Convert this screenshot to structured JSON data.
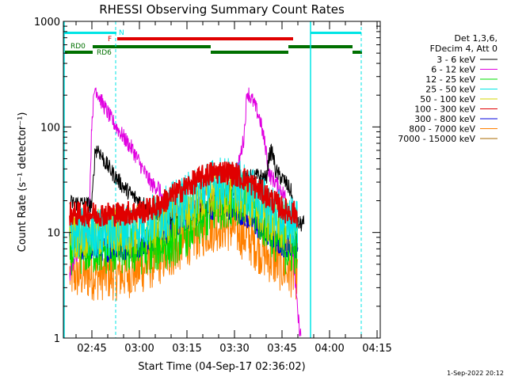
{
  "chart_data": {
    "type": "line",
    "title": "RHESSI Observing Summary Count Rates",
    "xlabel": "Start Time (04-Sep-17 02:36:02)",
    "ylabel": "Count Rate (s⁻¹ detector⁻¹)",
    "ylim": [
      1,
      1000
    ],
    "yscale": "log",
    "xlim_minutes": [
      156,
      256
    ],
    "x_ticks": [
      "02:45",
      "03:00",
      "03:15",
      "03:30",
      "03:45",
      "04:00",
      "04:15"
    ],
    "y_ticks": [
      "1",
      "10",
      "100",
      "1000"
    ],
    "legend_header": [
      "Det 1,3,6,",
      "FDecim 4, Att 0"
    ],
    "legend_position": "right",
    "footer": "1-Sep-2022 20:12",
    "flags": [
      {
        "label": "N",
        "color": "#00e5e5"
      },
      {
        "label": "F",
        "color": "#e00000"
      },
      {
        "label": "RD0",
        "color": "#007000"
      },
      {
        "label": "RD6",
        "color": "#007000"
      }
    ],
    "series": [
      {
        "name": "3 - 6 keV",
        "color": "#000000",
        "points": [
          [
            158,
            19
          ],
          [
            161,
            19
          ],
          [
            165,
            18
          ],
          [
            166,
            60
          ],
          [
            167,
            62
          ],
          [
            169,
            47
          ],
          [
            172,
            35
          ],
          [
            175,
            27
          ],
          [
            178,
            22
          ],
          [
            182,
            18
          ],
          [
            186,
            15
          ],
          [
            190,
            14
          ],
          [
            194,
            15
          ],
          [
            198,
            16
          ],
          [
            202,
            18
          ],
          [
            206,
            21
          ],
          [
            210,
            27
          ],
          [
            214,
            33
          ],
          [
            218,
            34
          ],
          [
            220,
            32
          ],
          [
            221,
            55
          ],
          [
            222,
            58
          ],
          [
            223,
            38
          ],
          [
            226,
            30
          ],
          [
            228,
            24
          ],
          [
            229,
            12
          ],
          [
            232,
            12
          ]
        ]
      },
      {
        "name": "6 - 12 keV",
        "color": "#e000e0",
        "points": [
          [
            158,
            4
          ],
          [
            160,
            6
          ],
          [
            162,
            8
          ],
          [
            164,
            10
          ],
          [
            165,
            120
          ],
          [
            166,
            240
          ],
          [
            168,
            175
          ],
          [
            171,
            120
          ],
          [
            174,
            88
          ],
          [
            178,
            60
          ],
          [
            181,
            40
          ],
          [
            184,
            28
          ],
          [
            186,
            27
          ],
          [
            188,
            18
          ],
          [
            192,
            16
          ],
          [
            196,
            17
          ],
          [
            200,
            20
          ],
          [
            202,
            34
          ],
          [
            203,
            22
          ],
          [
            206,
            22
          ],
          [
            210,
            28
          ],
          [
            213,
            80
          ],
          [
            214,
            220
          ],
          [
            216,
            170
          ],
          [
            218,
            120
          ],
          [
            220,
            60
          ],
          [
            221,
            35
          ],
          [
            223,
            30
          ],
          [
            226,
            22
          ],
          [
            228,
            8
          ],
          [
            229,
            4
          ],
          [
            230,
            1.6
          ],
          [
            231,
            1
          ]
        ]
      },
      {
        "name": "12 - 25 keV",
        "color": "#00dd00",
        "points": [
          [
            158,
            7
          ],
          [
            162,
            7
          ],
          [
            166,
            7
          ],
          [
            170,
            7
          ],
          [
            174,
            7
          ],
          [
            178,
            7
          ],
          [
            182,
            7
          ],
          [
            186,
            7.5
          ],
          [
            190,
            8
          ],
          [
            194,
            10
          ],
          [
            198,
            12
          ],
          [
            202,
            15
          ],
          [
            206,
            19
          ],
          [
            210,
            21
          ],
          [
            214,
            20
          ],
          [
            218,
            14
          ],
          [
            222,
            10
          ],
          [
            226,
            7
          ],
          [
            230,
            7
          ]
        ]
      },
      {
        "name": "25 - 50 keV",
        "color": "#00e5e5",
        "points": [
          [
            158,
            10
          ],
          [
            162,
            10
          ],
          [
            166,
            10
          ],
          [
            170,
            10
          ],
          [
            174,
            11
          ],
          [
            178,
            11.5
          ],
          [
            182,
            12.5
          ],
          [
            186,
            14
          ],
          [
            190,
            17
          ],
          [
            194,
            20
          ],
          [
            198,
            24
          ],
          [
            202,
            28
          ],
          [
            206,
            30
          ],
          [
            210,
            29
          ],
          [
            214,
            25
          ],
          [
            218,
            20
          ],
          [
            222,
            16
          ],
          [
            226,
            13
          ],
          [
            230,
            13
          ]
        ]
      },
      {
        "name": "50 - 100 keV",
        "color": "#d4d400",
        "points": [
          [
            158,
            10
          ],
          [
            162,
            10
          ],
          [
            166,
            10
          ],
          [
            170,
            10
          ],
          [
            174,
            10
          ],
          [
            178,
            10.5
          ],
          [
            182,
            11
          ],
          [
            186,
            12
          ],
          [
            190,
            14
          ],
          [
            194,
            16
          ],
          [
            198,
            19
          ],
          [
            202,
            22
          ],
          [
            206,
            24
          ],
          [
            210,
            23
          ],
          [
            214,
            20
          ],
          [
            218,
            16
          ],
          [
            222,
            13
          ],
          [
            226,
            11
          ],
          [
            230,
            11
          ]
        ]
      },
      {
        "name": "100 - 300 keV",
        "color": "#e00000",
        "points": [
          [
            158,
            15
          ],
          [
            162,
            15
          ],
          [
            166,
            15
          ],
          [
            170,
            15
          ],
          [
            174,
            15
          ],
          [
            178,
            15.5
          ],
          [
            182,
            16
          ],
          [
            186,
            18
          ],
          [
            190,
            22
          ],
          [
            194,
            26
          ],
          [
            198,
            31
          ],
          [
            202,
            36
          ],
          [
            206,
            38
          ],
          [
            210,
            36
          ],
          [
            214,
            31
          ],
          [
            218,
            25
          ],
          [
            222,
            20
          ],
          [
            226,
            16
          ],
          [
            230,
            15
          ]
        ]
      },
      {
        "name": "300 - 800 keV",
        "color": "#0000dd",
        "points": [
          [
            158,
            8
          ],
          [
            162,
            7
          ],
          [
            166,
            7
          ],
          [
            170,
            7
          ],
          [
            174,
            7
          ],
          [
            178,
            7.5
          ],
          [
            182,
            8
          ],
          [
            186,
            9
          ],
          [
            190,
            11
          ],
          [
            194,
            13
          ],
          [
            198,
            15
          ],
          [
            202,
            17
          ],
          [
            206,
            18
          ],
          [
            210,
            17
          ],
          [
            214,
            14
          ],
          [
            218,
            11
          ],
          [
            222,
            9
          ],
          [
            226,
            7.5
          ],
          [
            230,
            7.5
          ]
        ]
      },
      {
        "name": "800 - 7000 keV",
        "color": "#ff8000",
        "points": [
          [
            158,
            4
          ],
          [
            162,
            4
          ],
          [
            166,
            4
          ],
          [
            170,
            4
          ],
          [
            174,
            4
          ],
          [
            178,
            4.3
          ],
          [
            182,
            4.8
          ],
          [
            186,
            5.5
          ],
          [
            190,
            6.5
          ],
          [
            194,
            8
          ],
          [
            198,
            9.5
          ],
          [
            202,
            11
          ],
          [
            206,
            12
          ],
          [
            210,
            11
          ],
          [
            214,
            9
          ],
          [
            218,
            7
          ],
          [
            222,
            5.5
          ],
          [
            226,
            4.5
          ],
          [
            230,
            4
          ]
        ]
      },
      {
        "name": "7000 - 15000 keV",
        "color": "#a86a00",
        "points": []
      }
    ]
  }
}
